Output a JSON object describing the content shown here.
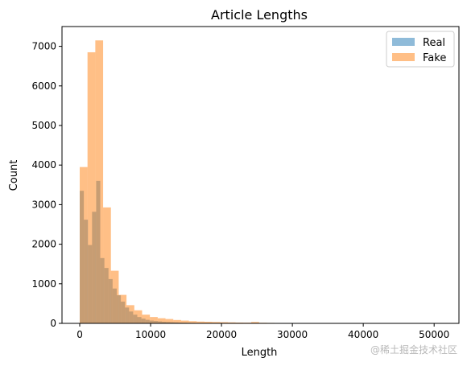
{
  "chart_data": {
    "type": "bar",
    "title": "Article Lengths",
    "xlabel": "Length",
    "ylabel": "Count",
    "xlim": [
      -2500,
      53500
    ],
    "ylim": [
      0,
      7500
    ],
    "xticks": [
      0,
      10000,
      20000,
      30000,
      40000,
      50000
    ],
    "yticks": [
      0,
      1000,
      2000,
      3000,
      4000,
      5000,
      6000,
      7000
    ],
    "legend_position": "top-right",
    "series": [
      {
        "name": "Real",
        "color": "#1f77b4",
        "opacity": 0.5,
        "bin_start": 0,
        "bin_width": 580,
        "values": [
          3350,
          2620,
          1980,
          2820,
          3600,
          1650,
          1400,
          1120,
          880,
          710,
          550,
          400,
          300,
          220,
          160,
          120,
          90,
          70,
          60,
          50,
          40,
          35,
          30,
          25,
          20,
          18,
          15,
          12,
          10,
          8,
          8,
          6,
          6,
          5,
          5,
          4,
          4,
          3,
          3,
          3,
          2,
          2,
          2,
          2,
          2,
          1,
          1,
          1,
          1,
          1
        ]
      },
      {
        "name": "Fake",
        "color": "#ff7f0e",
        "opacity": 0.5,
        "bin_start": 0,
        "bin_width": 1100,
        "values": [
          3950,
          6850,
          7150,
          2930,
          1330,
          720,
          460,
          330,
          220,
          160,
          130,
          110,
          85,
          70,
          55,
          45,
          40,
          35,
          30,
          25,
          20,
          18,
          35,
          15,
          12,
          10,
          8,
          7,
          6,
          6,
          5,
          5,
          4,
          4,
          3,
          3,
          3,
          2,
          2,
          2,
          2,
          2,
          1,
          1,
          1,
          1,
          1
        ]
      }
    ]
  },
  "watermark": "@稀土掘金技术社区"
}
